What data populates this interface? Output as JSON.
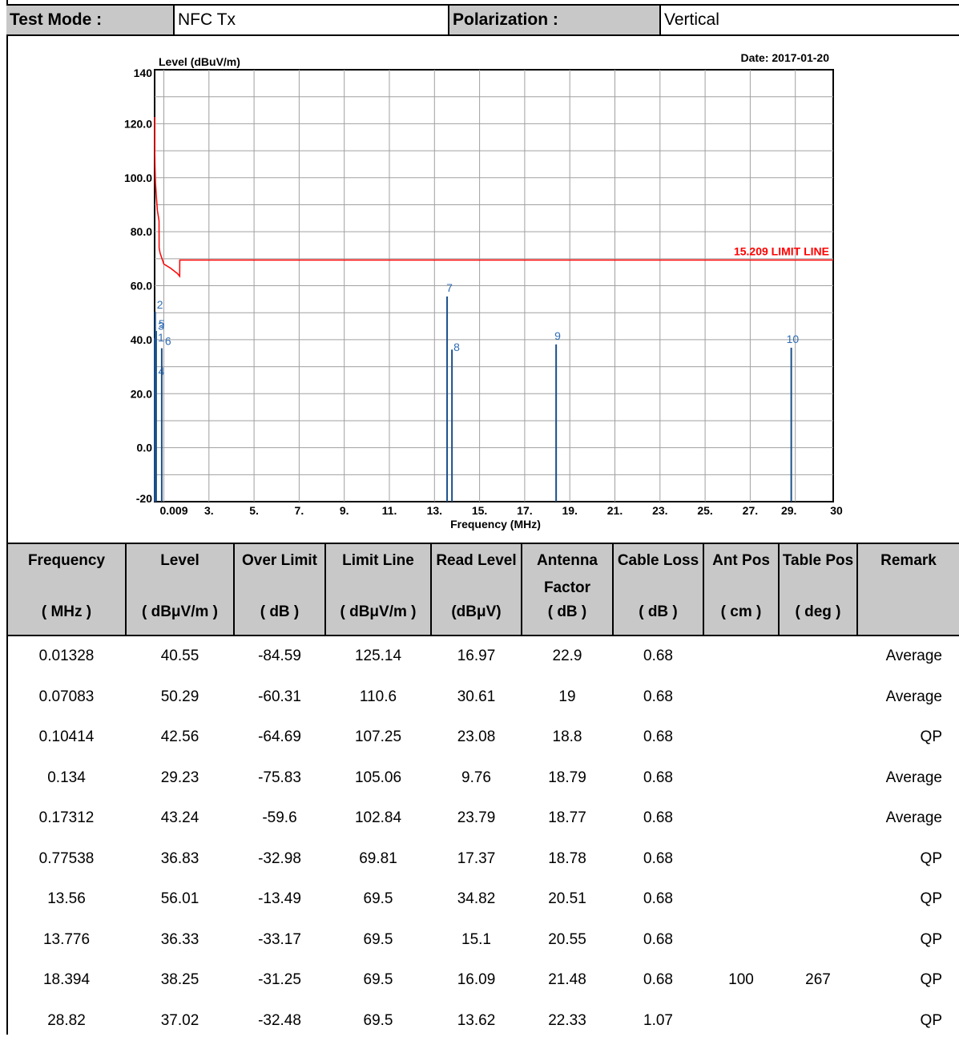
{
  "header": {
    "test_mode_label": "Test Mode :",
    "test_mode_value": "NFC Tx",
    "polarization_label": "Polarization :",
    "polarization_value": "Vertical"
  },
  "chart_data": {
    "type": "line",
    "ylabel": "Level (dBuV/m)",
    "xlabel": "Frequency (MHz)",
    "date": "Date: 2017-01-20",
    "ylim": [
      -20,
      140
    ],
    "xlim": [
      0.009,
      30
    ],
    "y_ticks": [
      "140",
      "120.0",
      "100.0",
      "80.0",
      "60.0",
      "40.0",
      "20.0",
      "0.0",
      "-20"
    ],
    "x_ticks": [
      "0.009",
      "3.",
      "5.",
      "7.",
      "9.",
      "11.",
      "13.",
      "15.",
      "17.",
      "19.",
      "21.",
      "23.",
      "25.",
      "27.",
      "29.",
      "30"
    ],
    "limit_label": "15.209 LIMIT LINE",
    "limit_color": "#ff0000",
    "marker_color": "#1a4f8a",
    "limit_line": {
      "x": [
        0.009,
        0.02,
        0.05,
        0.1,
        0.2,
        0.3,
        0.48,
        0.49,
        0.6,
        0.8,
        1.0,
        1.3,
        1.6,
        1.705,
        1.706,
        30
      ],
      "y": [
        122.5,
        112,
        104,
        98,
        93,
        88,
        84,
        74,
        72,
        70,
        68,
        66.5,
        64.5,
        63.5,
        69.5,
        69.5
      ]
    },
    "markers": [
      {
        "label": "1",
        "x": 0.01328,
        "y": 40.55
      },
      {
        "label": "2",
        "x": 0.07083,
        "y": 50.29
      },
      {
        "label": "3",
        "x": 0.10414,
        "y": 42.56
      },
      {
        "label": "4",
        "x": 0.134,
        "y": 29.23
      },
      {
        "label": "5",
        "x": 0.17312,
        "y": 43.24
      },
      {
        "label": "6",
        "x": 0.77538,
        "y": 36.83
      },
      {
        "label": "7",
        "x": 13.56,
        "y": 56.01
      },
      {
        "label": "8",
        "x": 13.776,
        "y": 36.33
      },
      {
        "label": "9",
        "x": 18.394,
        "y": 38.25
      },
      {
        "label": "10",
        "x": 28.82,
        "y": 37.02
      }
    ]
  },
  "table": {
    "columns": [
      {
        "top": "Frequency",
        "unit": "( MHz )"
      },
      {
        "top": "Level",
        "unit": "( dBμV/m )"
      },
      {
        "top": "Over Limit",
        "unit": "( dB )"
      },
      {
        "top": "Limit Line",
        "unit": "( dBμV/m )"
      },
      {
        "top": "Read Level",
        "unit": "(dBμV)"
      },
      {
        "top": "Antenna Factor",
        "unit": "( dB )"
      },
      {
        "top": "Cable Loss",
        "unit": "( dB )"
      },
      {
        "top": "Ant Pos",
        "unit": "( cm )"
      },
      {
        "top": "Table Pos",
        "unit": "( deg )"
      },
      {
        "top": "Remark",
        "unit": ""
      }
    ],
    "rows": [
      [
        "0.01328",
        "40.55",
        "-84.59",
        "125.14",
        "16.97",
        "22.9",
        "0.68",
        "",
        "",
        "Average"
      ],
      [
        "0.07083",
        "50.29",
        "-60.31",
        "110.6",
        "30.61",
        "19",
        "0.68",
        "",
        "",
        "Average"
      ],
      [
        "0.10414",
        "42.56",
        "-64.69",
        "107.25",
        "23.08",
        "18.8",
        "0.68",
        "",
        "",
        "QP"
      ],
      [
        "0.134",
        "29.23",
        "-75.83",
        "105.06",
        "9.76",
        "18.79",
        "0.68",
        "",
        "",
        "Average"
      ],
      [
        "0.17312",
        "43.24",
        "-59.6",
        "102.84",
        "23.79",
        "18.77",
        "0.68",
        "",
        "",
        "Average"
      ],
      [
        "0.77538",
        "36.83",
        "-32.98",
        "69.81",
        "17.37",
        "18.78",
        "0.68",
        "",
        "",
        "QP"
      ],
      [
        "13.56",
        "56.01",
        "-13.49",
        "69.5",
        "34.82",
        "20.51",
        "0.68",
        "",
        "",
        "QP"
      ],
      [
        "13.776",
        "36.33",
        "-33.17",
        "69.5",
        "15.1",
        "20.55",
        "0.68",
        "",
        "",
        "QP"
      ],
      [
        "18.394",
        "38.25",
        "-31.25",
        "69.5",
        "16.09",
        "21.48",
        "0.68",
        "100",
        "267",
        "QP"
      ],
      [
        "28.82",
        "37.02",
        "-32.48",
        "69.5",
        "13.62",
        "22.33",
        "1.07",
        "",
        "",
        "QP"
      ]
    ]
  }
}
